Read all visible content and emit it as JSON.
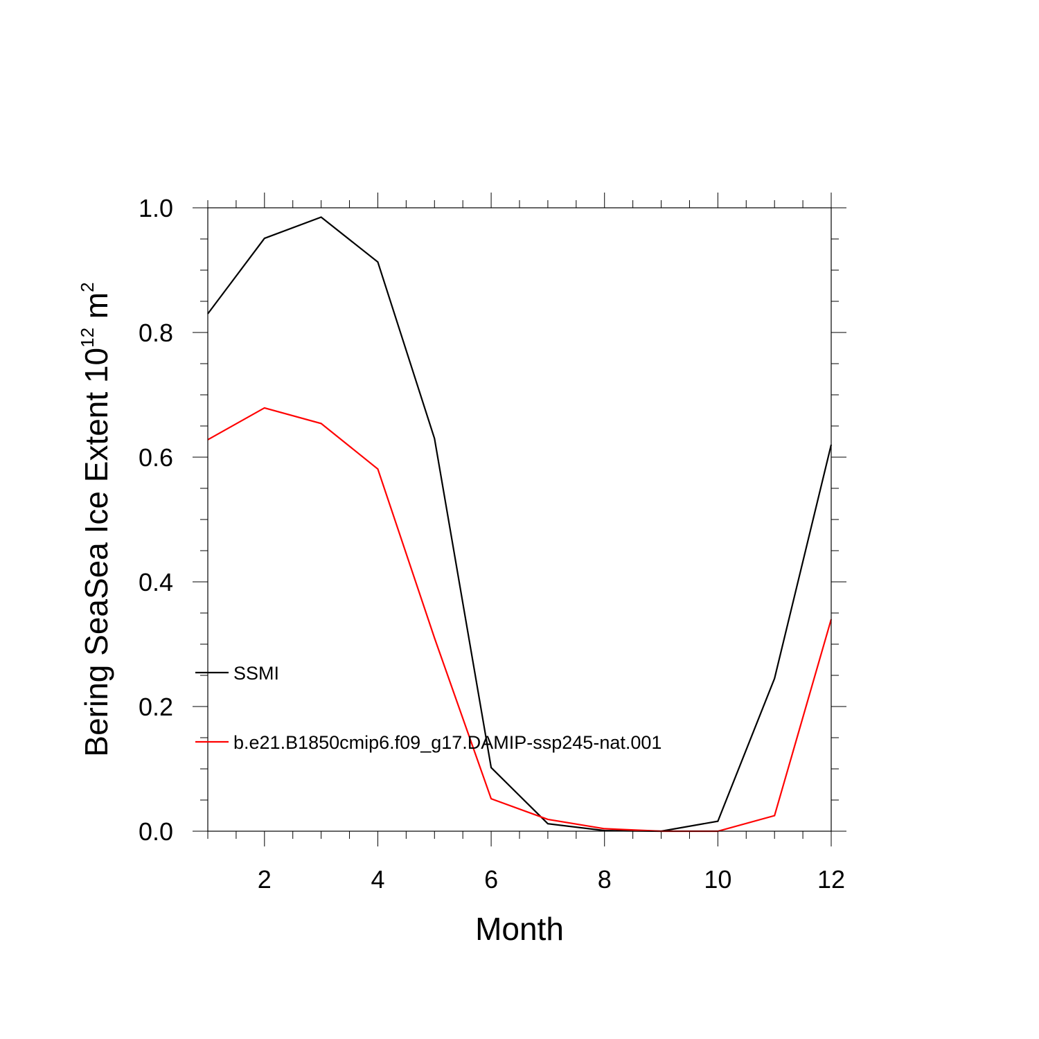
{
  "chart_data": {
    "type": "line",
    "xlabel": "Month",
    "ylabel": {
      "text": "Bering SeaSea Ice Extent 10",
      "superscript": "12",
      "unit": " m",
      "unit_superscript": "2"
    },
    "xlim": [
      1,
      12
    ],
    "ylim": [
      0.0,
      1.0
    ],
    "x_ticks": [
      2,
      4,
      6,
      8,
      10,
      12
    ],
    "x_tick_labels": [
      "2",
      "4",
      "6",
      "8",
      "10",
      "12"
    ],
    "y_ticks": [
      0.0,
      0.2,
      0.4,
      0.6,
      0.8,
      1.0
    ],
    "y_tick_labels": [
      "0.0",
      "0.2",
      "0.4",
      "0.6",
      "0.8",
      "1.0"
    ],
    "grid": false,
    "legend_position": "lower-left",
    "x": [
      1,
      2,
      3,
      4,
      5,
      6,
      7,
      8,
      9,
      10,
      11,
      12
    ],
    "series": [
      {
        "name": "SSMI",
        "color": "#000000",
        "values": [
          0.83,
          0.951,
          0.985,
          0.913,
          0.63,
          0.102,
          0.012,
          0.001,
          0.0,
          0.016,
          0.245,
          0.62
        ]
      },
      {
        "name": "b.e21.B1850cmip6.f09_g17.DAMIP-ssp245-nat.001",
        "color": "#ff0000",
        "values": [
          0.628,
          0.679,
          0.654,
          0.581,
          0.31,
          0.052,
          0.019,
          0.004,
          0.0,
          0.0,
          0.025,
          0.34
        ]
      }
    ]
  }
}
